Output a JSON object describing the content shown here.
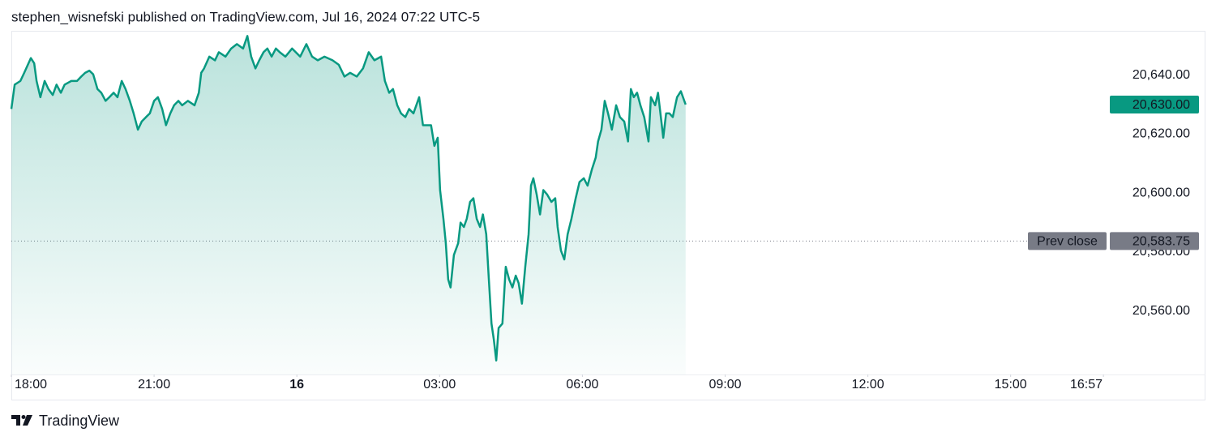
{
  "header": {
    "text": "stephen_wisnefski published on TradingView.com, Jul 16, 2024 07:22 UTC-5"
  },
  "footer": {
    "brand": "TradingView"
  },
  "chart_data": {
    "type": "area",
    "color": "#089981",
    "grid": false,
    "xlim": [
      18,
      41.05
    ],
    "ylim": [
      20538.5,
      20655
    ],
    "xticks": [
      {
        "value": 18,
        "label": "18:00"
      },
      {
        "value": 21,
        "label": "21:00"
      },
      {
        "value": 24,
        "label": "16",
        "bold": true
      },
      {
        "value": 27,
        "label": "03:00"
      },
      {
        "value": 30,
        "label": "06:00"
      },
      {
        "value": 33,
        "label": "09:00"
      },
      {
        "value": 36,
        "label": "12:00"
      },
      {
        "value": 39,
        "label": "15:00"
      },
      {
        "value": 40.95,
        "label": "16:57"
      }
    ],
    "yticks": [
      {
        "value": 20560,
        "label": "20,560.00"
      },
      {
        "value": 20580,
        "label": "20,580.00"
      },
      {
        "value": 20600,
        "label": "20,600.00"
      },
      {
        "value": 20620,
        "label": "20,620.00"
      },
      {
        "value": 20640,
        "label": "20,640.00"
      }
    ],
    "last_price": {
      "value": 20630,
      "label": "20,630.00",
      "color": "#089981"
    },
    "prev_close": {
      "name": "Prev close",
      "value": 20583.75,
      "label": "20,583.75",
      "color": "#787b86"
    },
    "x": [
      18.0,
      18.07,
      18.19,
      18.27,
      18.41,
      18.48,
      18.53,
      18.61,
      18.7,
      18.78,
      18.87,
      18.95,
      19.04,
      19.12,
      19.26,
      19.38,
      19.47,
      19.55,
      19.64,
      19.72,
      19.81,
      19.89,
      19.98,
      20.06,
      20.15,
      20.23,
      20.32,
      20.4,
      20.49,
      20.57,
      20.66,
      20.74,
      20.83,
      20.91,
      21.0,
      21.08,
      21.17,
      21.25,
      21.34,
      21.42,
      21.51,
      21.59,
      21.71,
      21.85,
      21.94,
      21.99,
      22.05,
      22.16,
      22.28,
      22.36,
      22.5,
      22.62,
      22.74,
      22.87,
      22.96,
      23.04,
      23.13,
      23.21,
      23.3,
      23.38,
      23.47,
      23.56,
      23.64,
      23.76,
      23.9,
      24.07,
      24.2,
      24.32,
      24.44,
      24.58,
      24.75,
      24.88,
      25.0,
      25.12,
      25.26,
      25.39,
      25.51,
      25.63,
      25.77,
      25.85,
      25.94,
      26.02,
      26.11,
      26.19,
      26.28,
      26.36,
      26.45,
      26.57,
      26.65,
      26.76,
      26.82,
      26.89,
      26.96,
      27.01,
      27.08,
      27.13,
      27.18,
      27.23,
      27.3,
      27.39,
      27.44,
      27.51,
      27.57,
      27.64,
      27.71,
      27.78,
      27.85,
      27.91,
      27.98,
      28.03,
      28.09,
      28.14,
      28.19,
      28.24,
      28.32,
      28.39,
      28.46,
      28.53,
      28.6,
      28.66,
      28.73,
      28.8,
      28.87,
      28.92,
      28.97,
      29.04,
      29.11,
      29.18,
      29.26,
      29.35,
      29.43,
      29.48,
      29.55,
      29.62,
      29.69,
      29.77,
      29.86,
      29.94,
      30.03,
      30.11,
      30.2,
      30.28,
      30.33,
      30.4,
      30.47,
      30.54,
      30.62,
      30.71,
      30.79,
      30.88,
      30.96,
      31.02,
      31.08,
      31.15,
      31.22,
      31.3,
      31.39,
      31.44,
      31.53,
      31.59,
      31.7,
      31.76,
      31.83,
      31.9,
      31.99,
      32.07,
      32.17
    ],
    "values": [
      20628.5,
      20636.75,
      20638,
      20640.75,
      20645.75,
      20644,
      20638,
      20632.5,
      20638,
      20635.25,
      20633.25,
      20636.75,
      20634,
      20636.75,
      20638,
      20638,
      20639.5,
      20640.75,
      20641.5,
      20640.25,
      20635.25,
      20634,
      20631.25,
      20632.5,
      20634,
      20632.5,
      20638,
      20635.25,
      20631.25,
      20627,
      20621.5,
      20624.25,
      20625.75,
      20627,
      20631.25,
      20632.5,
      20628.5,
      20623,
      20627,
      20629.75,
      20631.25,
      20629.75,
      20631.25,
      20629.75,
      20634,
      20640.75,
      20642.25,
      20646.25,
      20645,
      20647.75,
      20646.25,
      20649,
      20650.5,
      20649,
      20653.25,
      20646.25,
      20642.25,
      20645,
      20647.75,
      20649,
      20646.25,
      20649,
      20647.75,
      20646.25,
      20649,
      20646.25,
      20650.5,
      20646.25,
      20645,
      20646.25,
      20645,
      20643.5,
      20639.5,
      20640.75,
      20639.5,
      20642.25,
      20647.75,
      20645,
      20646.25,
      20638,
      20634,
      20635.25,
      20629.75,
      20627,
      20625.75,
      20628.5,
      20627,
      20632.5,
      20623,
      20623,
      20623,
      20616,
      20618.75,
      20601,
      20591.25,
      20583,
      20570.75,
      20568,
      20579,
      20583,
      20590,
      20588.5,
      20591.25,
      20597,
      20598.25,
      20591.25,
      20588.5,
      20592.75,
      20586,
      20572,
      20555.75,
      20550.25,
      20543.25,
      20554.25,
      20555.75,
      20575,
      20570.75,
      20568,
      20572,
      20569.5,
      20562.5,
      20575,
      20586,
      20602.5,
      20605,
      20599.5,
      20592.75,
      20601,
      20599.5,
      20597,
      20598.25,
      20588.5,
      20580.5,
      20577.5,
      20586,
      20591.25,
      20598.25,
      20603.75,
      20605,
      20602.5,
      20608,
      20612,
      20617.5,
      20621.5,
      20631.25,
      20627,
      20621.5,
      20629.75,
      20625.75,
      20624.25,
      20617.5,
      20635.25,
      20632.5,
      20634,
      20629.75,
      20625.75,
      20617.5,
      20632.5,
      20629.75,
      20634,
      20618.75,
      20627,
      20627,
      20625.75,
      20632.5,
      20634.5,
      20630
    ]
  }
}
